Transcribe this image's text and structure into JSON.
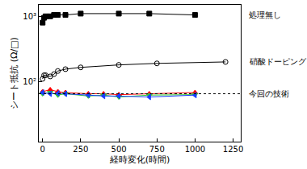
{
  "chart_data": {
    "type": "line",
    "x_label": "経時変化(時間)",
    "y_label": "シート抵抗 (Ω/□)",
    "log": "y",
    "grid": false,
    "xlim": [
      -25,
      1300
    ],
    "xticks": [
      0,
      250,
      500,
      750,
      1000,
      1250
    ],
    "ylim": [
      12,
      1500
    ],
    "yticks": [
      {
        "value": 100,
        "label": "10²"
      },
      {
        "value": 1000,
        "label": "10³"
      }
    ],
    "series": [
      {
        "name": "処理無し",
        "color": "#000000",
        "marker": "square",
        "line_style": "solid",
        "x": [
          0,
          10,
          20,
          50,
          75,
          100,
          150,
          250,
          500,
          700,
          1000
        ],
        "values": [
          800,
          950,
          1000,
          1000,
          1050,
          1050,
          1050,
          1100,
          1100,
          1100,
          1050
        ]
      },
      {
        "name": "硝酸ドーピング",
        "color": "#000000",
        "marker": "circle-open",
        "line_style": "solid",
        "x": [
          0,
          10,
          20,
          50,
          75,
          100,
          150,
          250,
          500,
          750,
          1200
        ],
        "values": [
          110,
          125,
          125,
          120,
          130,
          145,
          155,
          165,
          180,
          190,
          200
        ]
      },
      {
        "color": "#ff0000",
        "marker": "triangle-up",
        "line_style": "solid",
        "x": [
          0,
          50,
          100,
          150,
          300,
          400,
          500,
          700,
          1000
        ],
        "values": [
          70,
          75,
          70,
          68,
          65,
          65,
          63,
          65,
          68
        ]
      },
      {
        "color": "#33cc33",
        "marker": "triangle-down",
        "line_style": "solid",
        "x": [
          0,
          50,
          100,
          150,
          300,
          400,
          500,
          700,
          1000
        ],
        "values": [
          65,
          68,
          62,
          65,
          60,
          62,
          58,
          62,
          63
        ]
      },
      {
        "color": "#1a3cff",
        "marker": "triangle-left",
        "line_style": "solid",
        "x": [
          0,
          50,
          100,
          150,
          300,
          400,
          500,
          700,
          1000
        ],
        "values": [
          68,
          65,
          66,
          65,
          62,
          60,
          60,
          58,
          62
        ]
      },
      {
        "name": "今回の技術",
        "color": "#000000",
        "marker": "none",
        "line_style": "dotted",
        "x": [
          -25,
          1300
        ],
        "values": [
          65,
          65
        ]
      }
    ]
  }
}
